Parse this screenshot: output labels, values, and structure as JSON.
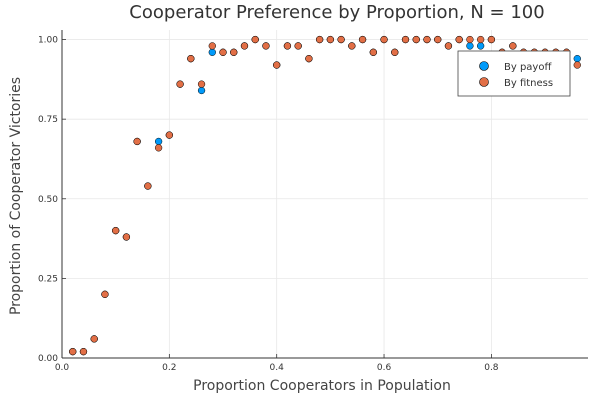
{
  "chart_data": {
    "type": "scatter",
    "title": "Cooperator Preference by Proportion, N = 100",
    "xlabel": "Proportion Cooperators in Population",
    "ylabel": "Proportion of Cooperator Victories",
    "xlim": [
      0,
      0.98
    ],
    "ylim": [
      0,
      1.03
    ],
    "x_ticks": [
      0,
      0.2,
      0.4,
      0.6,
      0.8
    ],
    "x_tick_labels": [
      "0.0",
      "0.2",
      "0.4",
      "0.6",
      "0.8"
    ],
    "y_ticks": [
      0,
      0.25,
      0.5,
      0.75,
      1.0
    ],
    "y_tick_labels": [
      "0.00",
      "0.25",
      "0.50",
      "0.75",
      "1.00"
    ],
    "grid": true,
    "legend_position": "top-right",
    "series": [
      {
        "name": "By payoff",
        "color": "#009AFA",
        "x": [
          0.02,
          0.04,
          0.06,
          0.08,
          0.1,
          0.12,
          0.14,
          0.16,
          0.18,
          0.2,
          0.22,
          0.24,
          0.26,
          0.28,
          0.3,
          0.32,
          0.34,
          0.36,
          0.38,
          0.4,
          0.42,
          0.44,
          0.46,
          0.48,
          0.5,
          0.52,
          0.54,
          0.56,
          0.58,
          0.6,
          0.62,
          0.64,
          0.66,
          0.68,
          0.7,
          0.72,
          0.74,
          0.76,
          0.78,
          0.8,
          0.82,
          0.84,
          0.86,
          0.88,
          0.9,
          0.92,
          0.94,
          0.96
        ],
        "y": [
          0.02,
          0.02,
          0.06,
          0.2,
          0.4,
          0.38,
          0.68,
          0.54,
          0.68,
          0.7,
          0.86,
          0.94,
          0.84,
          0.96,
          0.96,
          0.96,
          0.98,
          1.0,
          0.98,
          0.92,
          0.98,
          0.98,
          0.94,
          1.0,
          1.0,
          1.0,
          0.98,
          1.0,
          0.96,
          1.0,
          0.96,
          1.0,
          1.0,
          1.0,
          1.0,
          0.98,
          1.0,
          0.98,
          0.98,
          1.0,
          0.96,
          0.98,
          0.96,
          0.96,
          0.96,
          0.96,
          0.96,
          0.94
        ]
      },
      {
        "name": "By fitness",
        "color": "#E26F46",
        "x": [
          0.02,
          0.04,
          0.06,
          0.08,
          0.1,
          0.12,
          0.14,
          0.16,
          0.18,
          0.2,
          0.22,
          0.24,
          0.26,
          0.28,
          0.3,
          0.32,
          0.34,
          0.36,
          0.38,
          0.4,
          0.42,
          0.44,
          0.46,
          0.48,
          0.5,
          0.52,
          0.54,
          0.56,
          0.58,
          0.6,
          0.62,
          0.64,
          0.66,
          0.68,
          0.7,
          0.72,
          0.74,
          0.76,
          0.78,
          0.8,
          0.82,
          0.84,
          0.86,
          0.88,
          0.9,
          0.92,
          0.94,
          0.96
        ],
        "y": [
          0.02,
          0.02,
          0.06,
          0.2,
          0.4,
          0.38,
          0.68,
          0.54,
          0.66,
          0.7,
          0.86,
          0.94,
          0.86,
          0.98,
          0.96,
          0.96,
          0.98,
          1.0,
          0.98,
          0.92,
          0.98,
          0.98,
          0.94,
          1.0,
          1.0,
          1.0,
          0.98,
          1.0,
          0.96,
          1.0,
          0.96,
          1.0,
          1.0,
          1.0,
          1.0,
          0.98,
          1.0,
          1.0,
          1.0,
          1.0,
          0.96,
          0.98,
          0.96,
          0.96,
          0.96,
          0.96,
          0.96,
          0.92
        ]
      }
    ]
  }
}
